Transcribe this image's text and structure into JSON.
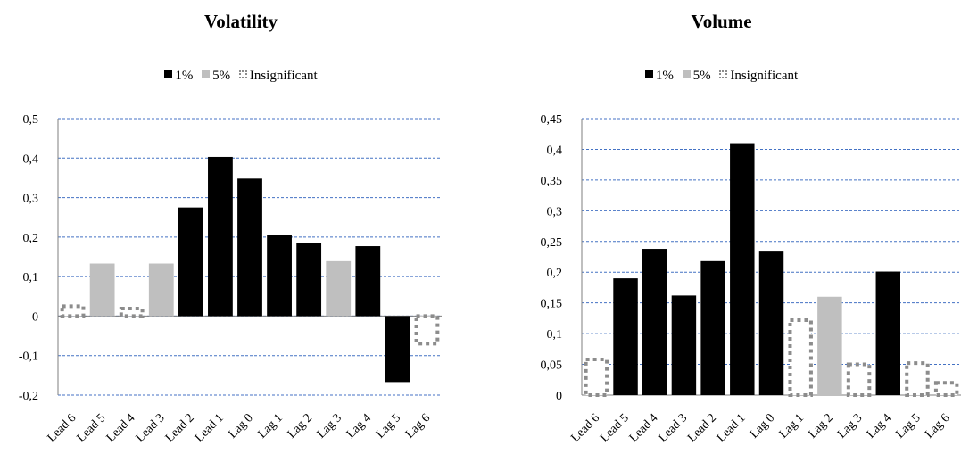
{
  "chart_data": [
    {
      "type": "bar",
      "title": "Volatility",
      "legend": [
        {
          "label": "1%",
          "key": "1%",
          "color": "#000000"
        },
        {
          "label": "5%",
          "key": "5%",
          "color": "#bfbfbf"
        },
        {
          "label": "Insignificant",
          "key": "insignificant",
          "color": "#8c8c8c"
        }
      ],
      "legend_position": "top",
      "categories": [
        "Lead 6",
        "Lead 5",
        "Lead 4",
        "Lead 3",
        "Lead 2",
        "Lead 1",
        "Lag 0",
        "Lag 1",
        "Lag 2",
        "Lag 3",
        "Lag 4",
        "Lag 5",
        "Lag 6"
      ],
      "values": [
        0.025,
        0.133,
        0.019,
        0.133,
        0.275,
        0.403,
        0.348,
        0.205,
        0.185,
        0.139,
        0.177,
        -0.167,
        -0.07
      ],
      "significance": [
        "insignificant",
        "5%",
        "insignificant",
        "5%",
        "1%",
        "1%",
        "1%",
        "1%",
        "1%",
        "5%",
        "1%",
        "1%",
        "insignificant"
      ],
      "yticks": [
        "0,5",
        "0,4",
        "0,3",
        "0,2",
        "0,1",
        "0",
        "-0,1",
        "-0,2"
      ],
      "ylim": [
        -0.2,
        0.5
      ],
      "ystep": 0.1,
      "grid": true
    },
    {
      "type": "bar",
      "title": "Volume",
      "legend": [
        {
          "label": "1%",
          "key": "1%",
          "color": "#000000"
        },
        {
          "label": "5%",
          "key": "5%",
          "color": "#bfbfbf"
        },
        {
          "label": "Insignificant",
          "key": "insignificant",
          "color": "#8c8c8c"
        }
      ],
      "legend_position": "top",
      "categories": [
        "Lead 6",
        "Lead 5",
        "Lead 4",
        "Lead 3",
        "Lead 2",
        "Lead 1",
        "Lag 0",
        "Lag 1",
        "Lag 2",
        "Lag 3",
        "Lag 4",
        "Lag 5",
        "Lag 6"
      ],
      "values": [
        0.058,
        0.19,
        0.238,
        0.162,
        0.218,
        0.41,
        0.235,
        0.122,
        0.16,
        0.05,
        0.201,
        0.052,
        0.02
      ],
      "significance": [
        "insignificant",
        "1%",
        "1%",
        "1%",
        "1%",
        "1%",
        "1%",
        "insignificant",
        "5%",
        "insignificant",
        "1%",
        "insignificant",
        "insignificant"
      ],
      "yticks": [
        "0,45",
        "0,4",
        "0,35",
        "0,3",
        "0,25",
        "0,2",
        "0,15",
        "0,1",
        "0,05",
        "0"
      ],
      "ylim": [
        0,
        0.45
      ],
      "ystep": 0.05,
      "grid": true
    }
  ]
}
